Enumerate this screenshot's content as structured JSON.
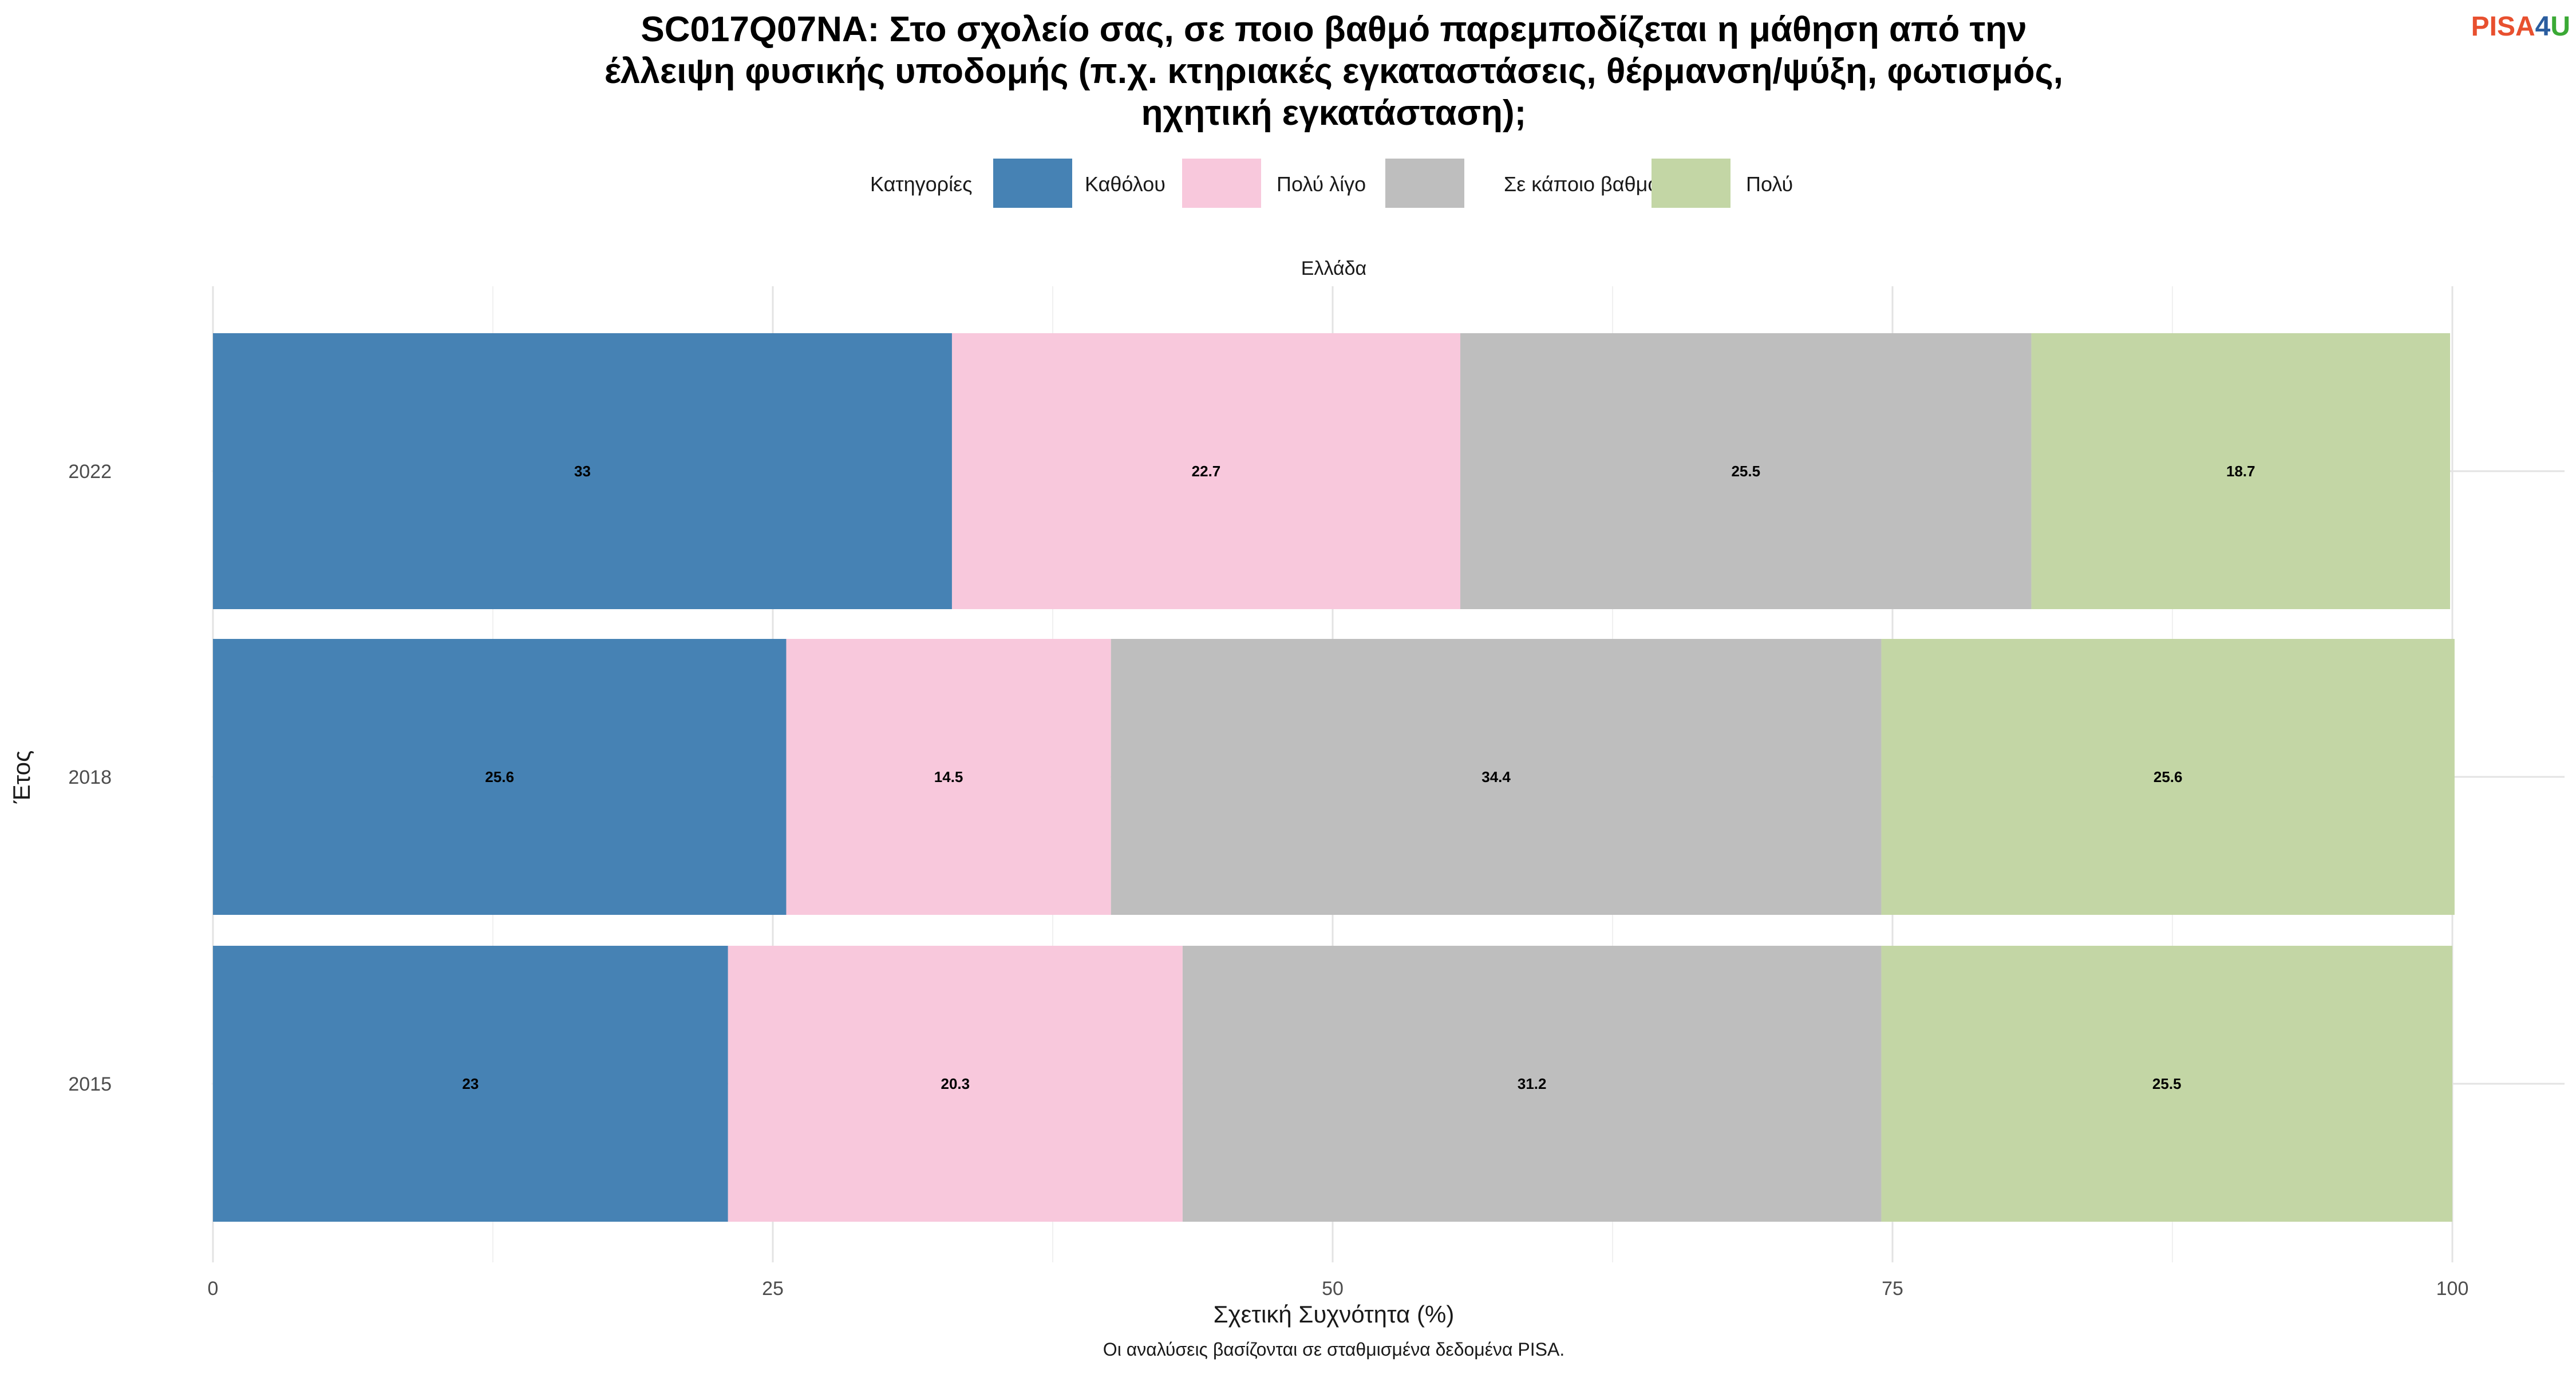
{
  "logo": {
    "text_left": "PISA",
    "text_mid": "4",
    "text_right": "U",
    "colors": {
      "left": "#e8502f",
      "mid": "#2a5d9f",
      "right": "#3aa935"
    }
  },
  "chart_data": {
    "type": "bar",
    "orientation": "horizontal",
    "stacked": true,
    "title": "SC017Q07NA: Στο σχολείο σας, σε ποιο βαθμό παρεμποδίζεται η μάθηση από την έλλειψη φυσικής υποδομής (π.χ. κτηριακές εγκαταστάσεις, θέρμανση/ψύξη, φωτισμός, ηχητική εγκατάσταση);",
    "title_lines": [
      "SC017Q07NA: Στο σχολείο σας, σε ποιο βαθμό παρεμποδίζεται η μάθηση από την",
      "έλλειψη φυσικής υποδομής (π.χ. κτηριακές εγκαταστάσεις, θέρμανση/ψύξη, φωτισμός,",
      "ηχητική εγκατάσταση);"
    ],
    "facet": "Ελλάδα",
    "legend_title": "Κατηγορίες",
    "legend_position": "top",
    "xlabel": "Σχετική Συχνότητα (%)",
    "ylabel": "Έτος",
    "xlim": [
      0,
      100
    ],
    "xticks": [
      0,
      25,
      50,
      75,
      100
    ],
    "grid": true,
    "categories": [
      "2022",
      "2018",
      "2015"
    ],
    "series": [
      {
        "name": "Καθόλου",
        "color": "#4682b4",
        "values": [
          33,
          25.6,
          23
        ]
      },
      {
        "name": "Πολύ λίγο",
        "color": "#f8c8dc",
        "values": [
          22.7,
          14.5,
          20.3
        ]
      },
      {
        "name": "Σε κάποιο βαθμό",
        "color": "#bebebe",
        "values": [
          25.5,
          34.4,
          31.2
        ]
      },
      {
        "name": "Πολύ",
        "color": "#c3d6a5",
        "values": [
          18.7,
          25.6,
          25.5
        ]
      }
    ],
    "data_labels": [
      [
        "33",
        "22.7",
        "25.5",
        "18.7"
      ],
      [
        "25.6",
        "14.5",
        "34.4",
        "25.6"
      ],
      [
        "23",
        "20.3",
        "31.2",
        "25.5"
      ]
    ],
    "caption": "Οι αναλύσεις βασίζονται σε σταθμισμένα δεδομένα PISA."
  }
}
